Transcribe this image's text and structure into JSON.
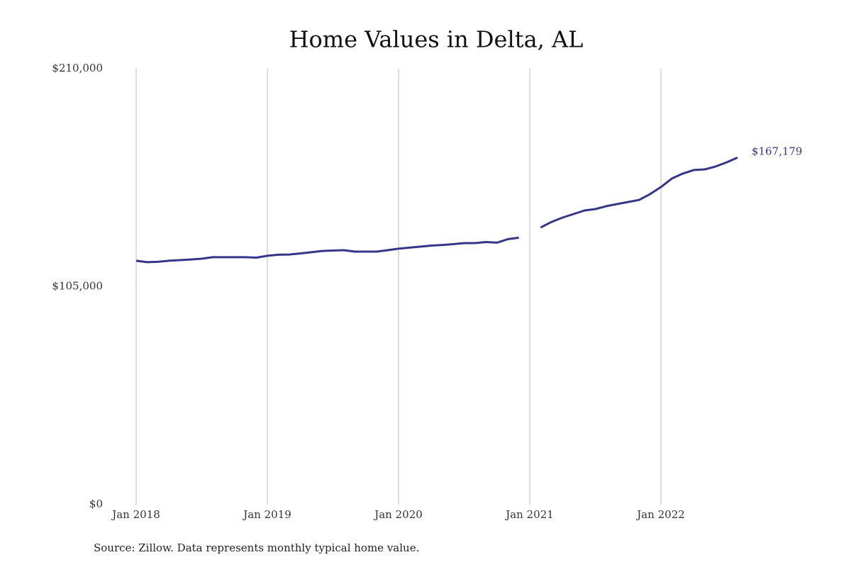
{
  "chart_data": {
    "type": "line",
    "title": "Home Values in Delta, AL",
    "source": "Source: Zillow. Data represents monthly typical home value.",
    "x": [
      "2018-01",
      "2018-02",
      "2018-03",
      "2018-04",
      "2018-05",
      "2018-06",
      "2018-07",
      "2018-08",
      "2018-09",
      "2018-10",
      "2018-11",
      "2018-12",
      "2019-01",
      "2019-02",
      "2019-03",
      "2019-04",
      "2019-05",
      "2019-06",
      "2019-07",
      "2019-08",
      "2019-09",
      "2019-10",
      "2019-11",
      "2019-12",
      "2020-01",
      "2020-02",
      "2020-03",
      "2020-04",
      "2020-05",
      "2020-06",
      "2020-07",
      "2020-08",
      "2020-09",
      "2020-10",
      "2020-11",
      "2020-12",
      "2021-01",
      "2021-02",
      "2021-03",
      "2021-04",
      "2021-05",
      "2021-06",
      "2021-07",
      "2021-08",
      "2021-09",
      "2021-10",
      "2021-11",
      "2021-12",
      "2022-01",
      "2022-02",
      "2022-03",
      "2022-04",
      "2022-05",
      "2022-06",
      "2022-07",
      "2022-08"
    ],
    "series": [
      {
        "name": "Delta, AL",
        "color": "#35358a",
        "values": [
          117500,
          116800,
          117000,
          117500,
          117800,
          118100,
          118500,
          119200,
          119200,
          119200,
          119200,
          119000,
          119900,
          120400,
          120500,
          121000,
          121600,
          122200,
          122400,
          122600,
          121900,
          121900,
          121900,
          122600,
          123300,
          123800,
          124300,
          124800,
          125100,
          125500,
          126000,
          126000,
          126500,
          126200,
          127900,
          128600,
          null,
          133500,
          136200,
          138300,
          140000,
          141700,
          142400,
          143800,
          144800,
          145800,
          146800,
          149600,
          153000,
          157100,
          159500,
          161200,
          161500,
          162900,
          164900,
          167179
        ],
        "value_labels": [
          null,
          null,
          null,
          null,
          null,
          null,
          null,
          null,
          null,
          null,
          null,
          null,
          null,
          null,
          null,
          null,
          null,
          null,
          null,
          null,
          null,
          null,
          null,
          null,
          null,
          null,
          null,
          null,
          null,
          null,
          null,
          null,
          null,
          null,
          null,
          null,
          null,
          null,
          null,
          null,
          null,
          null,
          null,
          null,
          null,
          null,
          null,
          null,
          null,
          null,
          null,
          null,
          null,
          null,
          null,
          "$167,179"
        ]
      }
    ],
    "xlim": [
      "2018-01",
      "2022-12"
    ],
    "xticks": [
      {
        "value": "2018-01",
        "label": "Jan 2018"
      },
      {
        "value": "2019-01",
        "label": "Jan 2019"
      },
      {
        "value": "2020-01",
        "label": "Jan 2020"
      },
      {
        "value": "2021-01",
        "label": "Jan 2021"
      },
      {
        "value": "2022-01",
        "label": "Jan 2022"
      }
    ],
    "ylim": [
      0,
      210000
    ],
    "yticks": [
      {
        "value": 0,
        "label": "$0"
      },
      {
        "value": 105000,
        "label": "$105,000"
      },
      {
        "value": 210000,
        "label": "$210,000"
      }
    ],
    "grid": "x"
  }
}
